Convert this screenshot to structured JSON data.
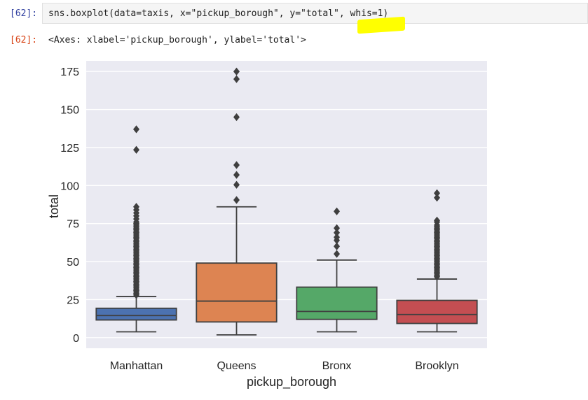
{
  "cell": {
    "in_prompt": "[62]:",
    "code": "sns.boxplot(data=taxis, x=\"pickup_borough\", y=\"total\", whis=1)",
    "out_prompt": "[62]:",
    "output": "<Axes: xlabel='pickup_borough', ylabel='total'>",
    "highlight_color": "#ffff00"
  },
  "chart_data": {
    "type": "box",
    "xlabel": "pickup_borough",
    "ylabel": "total",
    "ylim": [
      -7,
      182
    ],
    "yticks": [
      0,
      25,
      50,
      75,
      100,
      125,
      150,
      175
    ],
    "grid": true,
    "background": "#eaeaf2",
    "categories": [
      "Manhattan",
      "Queens",
      "Bronx",
      "Brooklyn"
    ],
    "boxes": [
      {
        "category": "Manhattan",
        "color": "#4c72b0",
        "whislo": 3.8,
        "q1": 11.6,
        "med": 14.5,
        "q3": 19.3,
        "whishi": 27,
        "fliers": [
          28,
          29,
          30,
          31,
          32,
          33,
          34,
          35,
          36,
          37,
          38,
          39,
          40,
          41,
          42,
          43,
          44,
          45,
          46,
          47,
          48,
          49,
          50,
          51,
          52,
          53,
          54,
          55,
          56,
          57,
          58,
          59,
          60,
          61,
          62,
          63,
          64,
          65,
          66,
          67,
          68,
          69,
          70,
          71,
          72,
          73,
          74,
          75,
          76,
          78,
          80,
          82,
          84,
          86,
          123.5,
          137
        ]
      },
      {
        "category": "Queens",
        "color": "#dd8452",
        "whislo": 1.8,
        "q1": 10.3,
        "med": 24,
        "q3": 49,
        "whishi": 86,
        "fliers": [
          90.5,
          100.5,
          107,
          113.5,
          145,
          170,
          175
        ]
      },
      {
        "category": "Bronx",
        "color": "#55a868",
        "whislo": 3.8,
        "q1": 12,
        "med": 17.2,
        "q3": 33.2,
        "whishi": 51,
        "fliers": [
          55,
          60,
          64,
          66,
          69,
          72,
          83
        ]
      },
      {
        "category": "Brooklyn",
        "color": "#c44e52",
        "whislo": 3.8,
        "q1": 9.3,
        "med": 15.2,
        "q3": 24.5,
        "whishi": 38.5,
        "fliers": [
          40,
          41,
          42,
          43,
          44,
          45,
          46,
          47,
          48,
          49,
          50,
          51,
          52,
          53,
          54,
          55,
          56,
          57,
          58,
          59,
          60,
          61,
          62,
          63,
          64,
          65,
          66,
          67,
          68,
          69,
          70,
          71,
          72,
          73,
          74,
          76,
          77,
          92,
          95
        ]
      }
    ]
  }
}
